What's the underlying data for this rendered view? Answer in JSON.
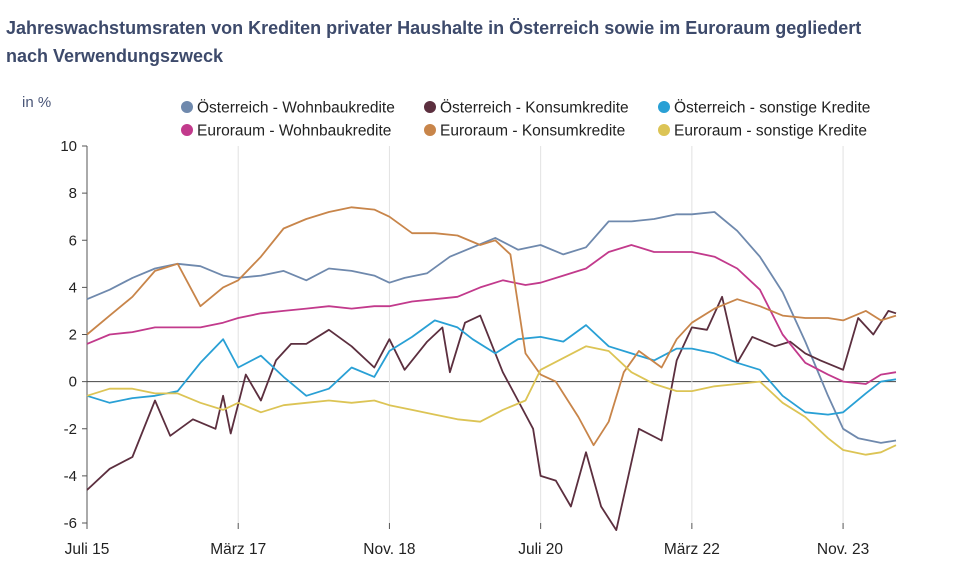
{
  "title": "Jahreswachstumsraten von Krediten privater Haushalte in Österreich sowie im Euroraum gegliedert nach Verwendungszweck",
  "unit_label": "in %",
  "chart_data": {
    "type": "line",
    "title": "Jahreswachstumsraten von Krediten privater Haushalte in Österreich sowie im Euroraum gegliedert nach Verwendungszweck",
    "ylabel": "in %",
    "xlabel": "",
    "ylim": [
      -6,
      10
    ],
    "yticks": [
      10,
      8,
      6,
      4,
      2,
      0,
      -2,
      -4,
      -6
    ],
    "x_start": "2015-07",
    "x_end": "2024-06",
    "xticks": [
      {
        "label": "Juli 15",
        "date": "2015-07"
      },
      {
        "label": "März 17",
        "date": "2017-03"
      },
      {
        "label": "Nov. 18",
        "date": "2018-11"
      },
      {
        "label": "Juli 20",
        "date": "2020-07"
      },
      {
        "label": "März 22",
        "date": "2022-03"
      },
      {
        "label": "Nov. 23",
        "date": "2023-11"
      }
    ],
    "grid": "vertical",
    "legend_position": "top",
    "series": [
      {
        "name": "Österreich - Wohnbaukredite",
        "color": "#6f89ad",
        "points": [
          [
            "2015-07",
            3.5
          ],
          [
            "2015-10",
            3.9
          ],
          [
            "2016-01",
            4.4
          ],
          [
            "2016-04",
            4.8
          ],
          [
            "2016-07",
            5.0
          ],
          [
            "2016-10",
            4.9
          ],
          [
            "2017-01",
            4.5
          ],
          [
            "2017-03",
            4.4
          ],
          [
            "2017-06",
            4.5
          ],
          [
            "2017-09",
            4.7
          ],
          [
            "2017-12",
            4.3
          ],
          [
            "2018-03",
            4.8
          ],
          [
            "2018-06",
            4.7
          ],
          [
            "2018-09",
            4.5
          ],
          [
            "2018-11",
            4.2
          ],
          [
            "2019-01",
            4.4
          ],
          [
            "2019-04",
            4.6
          ],
          [
            "2019-07",
            5.3
          ],
          [
            "2019-10",
            5.7
          ],
          [
            "2020-01",
            6.1
          ],
          [
            "2020-04",
            5.6
          ],
          [
            "2020-07",
            5.8
          ],
          [
            "2020-10",
            5.4
          ],
          [
            "2021-01",
            5.7
          ],
          [
            "2021-04",
            6.8
          ],
          [
            "2021-07",
            6.8
          ],
          [
            "2021-10",
            6.9
          ],
          [
            "2022-01",
            7.1
          ],
          [
            "2022-03",
            7.1
          ],
          [
            "2022-06",
            7.2
          ],
          [
            "2022-09",
            6.4
          ],
          [
            "2022-12",
            5.3
          ],
          [
            "2023-03",
            3.8
          ],
          [
            "2023-06",
            1.7
          ],
          [
            "2023-09",
            -0.6
          ],
          [
            "2023-11",
            -2.0
          ],
          [
            "2024-01",
            -2.4
          ],
          [
            "2024-04",
            -2.6
          ],
          [
            "2024-06",
            -2.5
          ]
        ]
      },
      {
        "name": "Österreich - Konsumkredite",
        "color": "#5c2f3f",
        "points": [
          [
            "2015-07",
            -4.6
          ],
          [
            "2015-10",
            -3.7
          ],
          [
            "2016-01",
            -3.2
          ],
          [
            "2016-04",
            -0.8
          ],
          [
            "2016-06",
            -2.3
          ],
          [
            "2016-09",
            -1.6
          ],
          [
            "2016-12",
            -2.0
          ],
          [
            "2017-01",
            -0.6
          ],
          [
            "2017-02",
            -2.2
          ],
          [
            "2017-04",
            0.3
          ],
          [
            "2017-06",
            -0.8
          ],
          [
            "2017-08",
            0.9
          ],
          [
            "2017-10",
            1.6
          ],
          [
            "2017-12",
            1.6
          ],
          [
            "2018-03",
            2.2
          ],
          [
            "2018-06",
            1.5
          ],
          [
            "2018-09",
            0.6
          ],
          [
            "2018-11",
            1.8
          ],
          [
            "2019-01",
            0.5
          ],
          [
            "2019-04",
            1.7
          ],
          [
            "2019-06",
            2.3
          ],
          [
            "2019-07",
            0.4
          ],
          [
            "2019-09",
            2.5
          ],
          [
            "2019-11",
            2.8
          ],
          [
            "2020-02",
            0.4
          ],
          [
            "2020-04",
            -0.8
          ],
          [
            "2020-06",
            -2.0
          ],
          [
            "2020-07",
            -4.0
          ],
          [
            "2020-09",
            -4.2
          ],
          [
            "2020-11",
            -5.3
          ],
          [
            "2021-01",
            -3.0
          ],
          [
            "2021-03",
            -5.3
          ],
          [
            "2021-05",
            -6.3
          ],
          [
            "2021-08",
            -2.0
          ],
          [
            "2021-11",
            -2.5
          ],
          [
            "2022-01",
            0.9
          ],
          [
            "2022-03",
            2.3
          ],
          [
            "2022-05",
            2.2
          ],
          [
            "2022-07",
            3.6
          ],
          [
            "2022-09",
            0.8
          ],
          [
            "2022-11",
            1.9
          ],
          [
            "2023-02",
            1.5
          ],
          [
            "2023-04",
            1.7
          ],
          [
            "2023-06",
            1.2
          ],
          [
            "2023-08",
            0.9
          ],
          [
            "2023-11",
            0.5
          ],
          [
            "2024-01",
            2.7
          ],
          [
            "2024-03",
            2.0
          ],
          [
            "2024-05",
            3.0
          ],
          [
            "2024-06",
            2.9
          ]
        ]
      },
      {
        "name": "Österreich - sonstige Kredite",
        "color": "#29a0d5",
        "points": [
          [
            "2015-07",
            -0.6
          ],
          [
            "2015-10",
            -0.9
          ],
          [
            "2016-01",
            -0.7
          ],
          [
            "2016-04",
            -0.6
          ],
          [
            "2016-07",
            -0.4
          ],
          [
            "2016-10",
            0.8
          ],
          [
            "2017-01",
            1.8
          ],
          [
            "2017-03",
            0.6
          ],
          [
            "2017-06",
            1.1
          ],
          [
            "2017-09",
            0.2
          ],
          [
            "2017-12",
            -0.6
          ],
          [
            "2018-03",
            -0.3
          ],
          [
            "2018-06",
            0.6
          ],
          [
            "2018-09",
            0.2
          ],
          [
            "2018-11",
            1.3
          ],
          [
            "2019-02",
            1.9
          ],
          [
            "2019-05",
            2.6
          ],
          [
            "2019-08",
            2.3
          ],
          [
            "2019-10",
            1.8
          ],
          [
            "2020-01",
            1.2
          ],
          [
            "2020-04",
            1.8
          ],
          [
            "2020-07",
            1.9
          ],
          [
            "2020-10",
            1.7
          ],
          [
            "2021-01",
            2.4
          ],
          [
            "2021-04",
            1.5
          ],
          [
            "2021-07",
            1.2
          ],
          [
            "2021-10",
            0.9
          ],
          [
            "2022-01",
            1.4
          ],
          [
            "2022-03",
            1.4
          ],
          [
            "2022-06",
            1.2
          ],
          [
            "2022-09",
            0.8
          ],
          [
            "2022-12",
            0.5
          ],
          [
            "2023-03",
            -0.6
          ],
          [
            "2023-06",
            -1.3
          ],
          [
            "2023-09",
            -1.4
          ],
          [
            "2023-11",
            -1.3
          ],
          [
            "2024-02",
            -0.5
          ],
          [
            "2024-04",
            0.0
          ],
          [
            "2024-06",
            0.1
          ]
        ]
      },
      {
        "name": "Euroraum - Wohnbaukredite",
        "color": "#c23a8c",
        "points": [
          [
            "2015-07",
            1.6
          ],
          [
            "2015-10",
            2.0
          ],
          [
            "2016-01",
            2.1
          ],
          [
            "2016-04",
            2.3
          ],
          [
            "2016-07",
            2.3
          ],
          [
            "2016-10",
            2.3
          ],
          [
            "2017-01",
            2.5
          ],
          [
            "2017-03",
            2.7
          ],
          [
            "2017-06",
            2.9
          ],
          [
            "2017-09",
            3.0
          ],
          [
            "2017-12",
            3.1
          ],
          [
            "2018-03",
            3.2
          ],
          [
            "2018-06",
            3.1
          ],
          [
            "2018-09",
            3.2
          ],
          [
            "2018-11",
            3.2
          ],
          [
            "2019-02",
            3.4
          ],
          [
            "2019-05",
            3.5
          ],
          [
            "2019-08",
            3.6
          ],
          [
            "2019-11",
            4.0
          ],
          [
            "2020-02",
            4.3
          ],
          [
            "2020-05",
            4.1
          ],
          [
            "2020-07",
            4.2
          ],
          [
            "2020-10",
            4.5
          ],
          [
            "2021-01",
            4.8
          ],
          [
            "2021-04",
            5.5
          ],
          [
            "2021-07",
            5.8
          ],
          [
            "2021-10",
            5.5
          ],
          [
            "2022-01",
            5.5
          ],
          [
            "2022-03",
            5.5
          ],
          [
            "2022-06",
            5.3
          ],
          [
            "2022-09",
            4.8
          ],
          [
            "2022-12",
            3.9
          ],
          [
            "2023-03",
            2.0
          ],
          [
            "2023-06",
            0.8
          ],
          [
            "2023-09",
            0.3
          ],
          [
            "2023-11",
            0.0
          ],
          [
            "2024-02",
            -0.1
          ],
          [
            "2024-04",
            0.3
          ],
          [
            "2024-06",
            0.4
          ]
        ]
      },
      {
        "name": "Euroraum - Konsumkredite",
        "color": "#c8854a",
        "points": [
          [
            "2015-07",
            2.0
          ],
          [
            "2015-10",
            2.8
          ],
          [
            "2016-01",
            3.6
          ],
          [
            "2016-04",
            4.7
          ],
          [
            "2016-07",
            5.0
          ],
          [
            "2016-10",
            3.2
          ],
          [
            "2017-01",
            4.0
          ],
          [
            "2017-03",
            4.3
          ],
          [
            "2017-06",
            5.3
          ],
          [
            "2017-09",
            6.5
          ],
          [
            "2017-12",
            6.9
          ],
          [
            "2018-03",
            7.2
          ],
          [
            "2018-06",
            7.4
          ],
          [
            "2018-09",
            7.3
          ],
          [
            "2018-11",
            7.0
          ],
          [
            "2019-02",
            6.3
          ],
          [
            "2019-05",
            6.3
          ],
          [
            "2019-08",
            6.2
          ],
          [
            "2019-11",
            5.8
          ],
          [
            "2020-01",
            6.0
          ],
          [
            "2020-03",
            5.4
          ],
          [
            "2020-05",
            1.2
          ],
          [
            "2020-07",
            0.3
          ],
          [
            "2020-09",
            0.0
          ],
          [
            "2020-12",
            -1.5
          ],
          [
            "2021-02",
            -2.7
          ],
          [
            "2021-04",
            -1.7
          ],
          [
            "2021-06",
            0.4
          ],
          [
            "2021-08",
            1.3
          ],
          [
            "2021-11",
            0.6
          ],
          [
            "2022-01",
            1.8
          ],
          [
            "2022-03",
            2.5
          ],
          [
            "2022-06",
            3.1
          ],
          [
            "2022-09",
            3.5
          ],
          [
            "2022-12",
            3.2
          ],
          [
            "2023-03",
            2.8
          ],
          [
            "2023-06",
            2.7
          ],
          [
            "2023-09",
            2.7
          ],
          [
            "2023-11",
            2.6
          ],
          [
            "2024-02",
            3.0
          ],
          [
            "2024-04",
            2.6
          ],
          [
            "2024-06",
            2.8
          ]
        ]
      },
      {
        "name": "Euroraum - sonstige Kredite",
        "color": "#dcc455",
        "points": [
          [
            "2015-07",
            -0.6
          ],
          [
            "2015-10",
            -0.3
          ],
          [
            "2016-01",
            -0.3
          ],
          [
            "2016-04",
            -0.5
          ],
          [
            "2016-07",
            -0.5
          ],
          [
            "2016-10",
            -0.9
          ],
          [
            "2017-01",
            -1.2
          ],
          [
            "2017-03",
            -0.9
          ],
          [
            "2017-06",
            -1.3
          ],
          [
            "2017-09",
            -1.0
          ],
          [
            "2017-12",
            -0.9
          ],
          [
            "2018-03",
            -0.8
          ],
          [
            "2018-06",
            -0.9
          ],
          [
            "2018-09",
            -0.8
          ],
          [
            "2018-11",
            -1.0
          ],
          [
            "2019-02",
            -1.2
          ],
          [
            "2019-05",
            -1.4
          ],
          [
            "2019-08",
            -1.6
          ],
          [
            "2019-11",
            -1.7
          ],
          [
            "2020-02",
            -1.2
          ],
          [
            "2020-05",
            -0.8
          ],
          [
            "2020-07",
            0.5
          ],
          [
            "2020-10",
            1.0
          ],
          [
            "2021-01",
            1.5
          ],
          [
            "2021-04",
            1.3
          ],
          [
            "2021-07",
            0.4
          ],
          [
            "2021-10",
            -0.1
          ],
          [
            "2022-01",
            -0.4
          ],
          [
            "2022-03",
            -0.4
          ],
          [
            "2022-06",
            -0.2
          ],
          [
            "2022-09",
            -0.1
          ],
          [
            "2022-12",
            0.0
          ],
          [
            "2023-03",
            -0.9
          ],
          [
            "2023-06",
            -1.5
          ],
          [
            "2023-09",
            -2.4
          ],
          [
            "2023-11",
            -2.9
          ],
          [
            "2024-02",
            -3.1
          ],
          [
            "2024-04",
            -3.0
          ],
          [
            "2024-06",
            -2.7
          ]
        ]
      }
    ]
  }
}
